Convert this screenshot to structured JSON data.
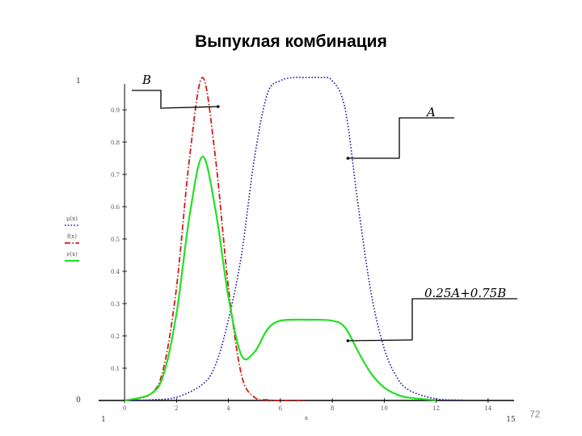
{
  "slide": {
    "title": "Выпуклая комбинация",
    "page_number": "72"
  },
  "chart_data": {
    "type": "line",
    "title": "Выпуклая комбинация",
    "xlabel": "x",
    "ylabel": "",
    "xlim": [
      -1,
      15
    ],
    "ylim": [
      0,
      1
    ],
    "x_range_labels": {
      "min": "1",
      "max": "15"
    },
    "y_range_labels": {
      "min": "0",
      "max": "1"
    },
    "x_ticks": [
      "0",
      "2",
      "4",
      "6",
      "8",
      "10",
      "12",
      "14"
    ],
    "y_ticks": [
      "0.1",
      "0.2",
      "0.3",
      "0.4",
      "0.5",
      "0.6",
      "0.7",
      "0.8",
      "0.9"
    ],
    "grid": false,
    "legend": {
      "placement": "left",
      "entries": [
        "μ(x)",
        "f(x)",
        "ν(x)"
      ]
    },
    "series": [
      {
        "name": "A",
        "color": "#1a1aa8",
        "style": "dotted",
        "x": [
          0,
          1,
          2,
          3,
          3.5,
          4,
          4.5,
          5,
          5.5,
          6,
          6.5,
          7,
          7.5,
          8,
          8.5,
          9,
          9.5,
          10,
          10.5,
          11,
          12,
          13
        ],
        "y": [
          0,
          0.002,
          0.01,
          0.05,
          0.11,
          0.25,
          0.45,
          0.75,
          0.95,
          0.99,
          1.0,
          1.0,
          1.0,
          0.99,
          0.9,
          0.6,
          0.33,
          0.16,
          0.07,
          0.03,
          0.005,
          0.001
        ]
      },
      {
        "name": "B",
        "color": "#d11a1a",
        "style": "dash-dot",
        "x": [
          0,
          1,
          1.5,
          2,
          2.5,
          3,
          3.5,
          4,
          4.5,
          5,
          5.5,
          6,
          7
        ],
        "y": [
          0,
          0.02,
          0.1,
          0.35,
          0.75,
          1.0,
          0.75,
          0.35,
          0.08,
          0.01,
          0.002,
          0,
          0
        ]
      },
      {
        "name": "0.25A+0.75B",
        "color": "#22e022",
        "style": "solid",
        "x": [
          0,
          1,
          1.5,
          2,
          2.5,
          3,
          3.5,
          4,
          4.5,
          5,
          5.5,
          6,
          7,
          8,
          8.5,
          9,
          9.5,
          10,
          10.5,
          11,
          12
        ],
        "y": [
          0,
          0.02,
          0.08,
          0.27,
          0.57,
          0.755,
          0.59,
          0.32,
          0.14,
          0.15,
          0.22,
          0.247,
          0.25,
          0.247,
          0.225,
          0.15,
          0.083,
          0.04,
          0.018,
          0.008,
          0.001
        ]
      }
    ],
    "annotations": [
      {
        "label": "B",
        "target_series": "B",
        "target_x": 3.6,
        "target_y": 0.91
      },
      {
        "label": "A",
        "target_series": "A",
        "target_x": 8.6,
        "target_y": 0.75
      },
      {
        "label": "0.25A+0.75B",
        "target_series": "0.25A+0.75B",
        "target_x": 8.6,
        "target_y": 0.185
      }
    ]
  }
}
